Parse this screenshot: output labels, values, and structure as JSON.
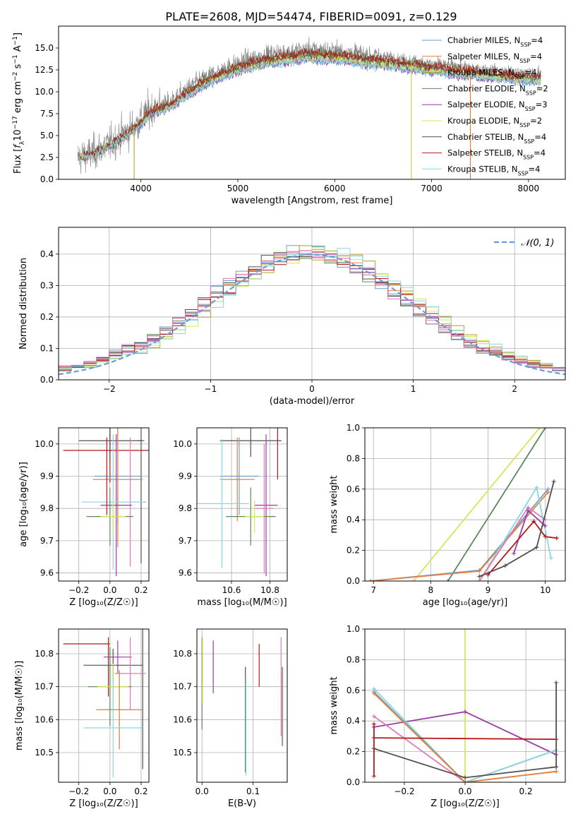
{
  "figure": {
    "title": "PLATE=2608, MJD=54474, FIBERID=0091, z=0.129"
  },
  "models": [
    {
      "name": "Chabrier MILES",
      "nssp": "4",
      "color": "#6a9fcf"
    },
    {
      "name": "Salpeter MILES",
      "nssp": "4",
      "color": "#e8803a"
    },
    {
      "name": "Kroupa MILES",
      "nssp": "4",
      "color": "#b8a020"
    },
    {
      "name": "Chabrier ELODIE",
      "nssp": "2",
      "color": "#5a8a5a"
    },
    {
      "name": "Salpeter ELODIE",
      "nssp": "3",
      "color": "#9a3aa8"
    },
    {
      "name": "Kroupa ELODIE",
      "nssp": "2",
      "color": "#d2e85a"
    },
    {
      "name": "Chabrier STELIB",
      "nssp": "4",
      "color": "#505050"
    },
    {
      "name": "Salpeter STELIB",
      "nssp": "4",
      "color": "#b81818"
    },
    {
      "name": "Kroupa STELIB",
      "nssp": "4",
      "color": "#88d8e0"
    }
  ],
  "extra_colors": {
    "pink": "#e07ab8",
    "data": "#808080",
    "normal": "#6a9ae0"
  },
  "chart_data": [
    {
      "id": "spectrum",
      "type": "line",
      "xlabel": "wavelength [Angstrom, rest frame]",
      "xlim": [
        3150,
        8380
      ],
      "ylim": [
        0,
        17.5
      ],
      "xticks": [
        4000,
        5000,
        6000,
        7000,
        8000
      ],
      "yticks": [
        0.0,
        2.5,
        5.0,
        7.5,
        10.0,
        12.5,
        15.0
      ],
      "continuum": [
        [
          3350,
          2.5
        ],
        [
          3500,
          3.0
        ],
        [
          3700,
          4.2
        ],
        [
          3900,
          5.8
        ],
        [
          4000,
          6.8
        ],
        [
          4100,
          8.0
        ],
        [
          4200,
          8.4
        ],
        [
          4300,
          8.8
        ],
        [
          4500,
          10.5
        ],
        [
          4700,
          11.8
        ],
        [
          4900,
          12.8
        ],
        [
          5100,
          13.6
        ],
        [
          5300,
          14.2
        ],
        [
          5500,
          14.5
        ],
        [
          5700,
          14.8
        ],
        [
          5900,
          14.7
        ],
        [
          6100,
          14.6
        ],
        [
          6300,
          14.2
        ],
        [
          6500,
          14.0
        ],
        [
          6700,
          13.7
        ],
        [
          6900,
          13.4
        ],
        [
          7100,
          13.1
        ],
        [
          7300,
          12.9
        ],
        [
          7500,
          12.6
        ],
        [
          7700,
          12.4
        ],
        [
          7900,
          12.2
        ],
        [
          8100,
          12.0
        ]
      ]
    },
    {
      "id": "residuals",
      "type": "step-histogram",
      "xlabel": "(data-model)/error",
      "ylabel": "Normed distribution",
      "xlim": [
        -2.5,
        2.5
      ],
      "ylim": [
        0,
        0.485
      ],
      "xticks": [
        -2,
        -1,
        0,
        1,
        2
      ],
      "yticks": [
        0.0,
        0.1,
        0.2,
        0.3,
        0.4
      ],
      "legend": "𝒩(0, 1)",
      "bins": 40,
      "bin_range": [
        -2.5,
        2.5
      ]
    },
    {
      "id": "age-vs-Z",
      "type": "errorbar",
      "xlabel": "Z [log₁₀(Z/Z☉)]",
      "ylabel": "age  [log₁₀(age/yr)]",
      "xlim": [
        -0.33,
        0.25
      ],
      "ylim": [
        9.575,
        10.05
      ],
      "xticks": [
        -0.2,
        0.0,
        0.2
      ],
      "yticks": [
        9.6,
        9.7,
        9.8,
        9.9,
        10.0
      ],
      "points": [
        {
          "x": 0.0,
          "y": 9.98,
          "xerr": 0.3,
          "yerr": 0.1,
          "color": "#b81818"
        },
        {
          "x": 0.0,
          "y": 10.01,
          "xerr": 0.2,
          "yerr": 0.06,
          "color": "#505050"
        },
        {
          "x": 0.2,
          "y": 10.01,
          "xerr": 0.02,
          "yerr": 0.38,
          "color": "#505050"
        },
        {
          "x": 0.05,
          "y": 9.9,
          "xerr": 0.15,
          "yerr": 0.15,
          "color": "#6a9fcf"
        },
        {
          "x": 0.05,
          "y": 9.89,
          "xerr": 0.16,
          "yerr": 0.21,
          "color": "#e8803a"
        },
        {
          "x": 0.13,
          "y": 9.82,
          "xerr": 0.1,
          "yerr": 0.2,
          "color": "#e07ab8"
        },
        {
          "x": 0.04,
          "y": 9.81,
          "xerr": 0.1,
          "yerr": 0.22,
          "color": "#9a3aa8"
        },
        {
          "x": 0.02,
          "y": 9.82,
          "xerr": 0.2,
          "yerr": 0.21,
          "color": "#88d8e0"
        },
        {
          "x": 0.0,
          "y": 9.775,
          "xerr": 0.15,
          "yerr": 0.09,
          "color": "#5a8a5a"
        },
        {
          "x": 0.02,
          "y": 9.775,
          "xerr": 0.08,
          "yerr": 0.05,
          "color": "#d2e85a"
        },
        {
          "x": -0.02,
          "y": 9.9,
          "xerr": 0.0,
          "yerr": 0.12,
          "color": "#b81818"
        }
      ]
    },
    {
      "id": "age-vs-mass",
      "type": "errorbar",
      "xlabel": "mass [log₁₀(M/M☉)]",
      "ylabel": "",
      "xlim": [
        10.42,
        10.89
      ],
      "ylim": [
        9.575,
        10.05
      ],
      "xticks": [
        10.6,
        10.8
      ],
      "yticks": [
        9.6,
        9.7,
        9.8,
        9.9,
        10.0
      ],
      "points": [
        {
          "x": 10.7,
          "y": 10.01,
          "xerr": 0.16,
          "yerr": 0.05,
          "color": "#505050"
        },
        {
          "x": 10.84,
          "y": 9.98,
          "xerr": 0.0,
          "yerr": 0.09,
          "color": "#b81818"
        },
        {
          "x": 10.64,
          "y": 9.9,
          "xerr": 0.1,
          "yerr": 0.12,
          "color": "#6a9fcf"
        },
        {
          "x": 10.63,
          "y": 9.89,
          "xerr": 0.09,
          "yerr": 0.13,
          "color": "#e8803a"
        },
        {
          "x": 10.55,
          "y": 9.815,
          "xerr": 0.14,
          "yerr": 0.2,
          "color": "#88d8e0"
        },
        {
          "x": 10.78,
          "y": 9.81,
          "xerr": 0.06,
          "yerr": 0.22,
          "color": "#9a3aa8"
        },
        {
          "x": 10.77,
          "y": 9.8,
          "xerr": 0.05,
          "yerr": 0.2,
          "color": "#e07ab8"
        },
        {
          "x": 10.7,
          "y": 9.775,
          "xerr": 0.13,
          "yerr": 0.09,
          "color": "#5a8a5a"
        },
        {
          "x": 10.72,
          "y": 9.775,
          "xerr": 0.05,
          "yerr": 0.05,
          "color": "#d2e85a"
        }
      ]
    },
    {
      "id": "weight-vs-age",
      "type": "line",
      "xlabel": "age  [log₁₀(age/yr)]",
      "ylabel": "mass weight",
      "xlim": [
        6.85,
        10.35
      ],
      "ylim": [
        0,
        1.0
      ],
      "xticks": [
        7,
        8,
        9,
        10
      ],
      "yticks": [
        0.0,
        0.2,
        0.4,
        0.6,
        0.8,
        1.0
      ],
      "series": [
        {
          "color": "#d2e85a",
          "points": [
            [
              7.7,
              0.0
            ],
            [
              9.9,
              1.0
            ]
          ]
        },
        {
          "color": "#5a8a5a",
          "points": [
            [
              8.3,
              0.0
            ],
            [
              10.0,
              1.0
            ]
          ]
        },
        {
          "color": "#6a9fcf",
          "points": [
            [
              6.95,
              0.0
            ],
            [
              8.85,
              0.07
            ],
            [
              10.05,
              0.6
            ]
          ]
        },
        {
          "color": "#e8803a",
          "points": [
            [
              6.95,
              0.0
            ],
            [
              8.85,
              0.065
            ],
            [
              10.05,
              0.58
            ]
          ]
        },
        {
          "color": "#88d8e0",
          "points": [
            [
              8.85,
              0.0
            ],
            [
              9.85,
              0.61
            ],
            [
              10.1,
              0.15
            ]
          ]
        },
        {
          "color": "#e07ab8",
          "points": [
            [
              8.85,
              0.0
            ],
            [
              9.7,
              0.48
            ],
            [
              10.0,
              0.4
            ]
          ]
        },
        {
          "color": "#9a3aa8",
          "points": [
            [
              9.45,
              0.18
            ],
            [
              9.7,
              0.46
            ],
            [
              10.0,
              0.36
            ]
          ]
        },
        {
          "color": "#b81818",
          "points": [
            [
              9.0,
              0.04
            ],
            [
              9.8,
              0.39
            ],
            [
              10.0,
              0.29
            ],
            [
              10.2,
              0.28
            ]
          ]
        },
        {
          "color": "#505050",
          "points": [
            [
              8.85,
              0.03
            ],
            [
              9.3,
              0.1
            ],
            [
              9.85,
              0.22
            ],
            [
              10.15,
              0.65
            ]
          ]
        }
      ]
    },
    {
      "id": "mass-vs-Z",
      "type": "errorbar",
      "xlabel": "Z [log₁₀(Z/Z☉)]",
      "ylabel": "mass [log₁₀(M/M☉)]",
      "xlim": [
        -0.33,
        0.25
      ],
      "ylim": [
        10.41,
        10.875
      ],
      "xticks": [
        -0.2,
        0.0,
        0.2
      ],
      "yticks": [
        10.5,
        10.6,
        10.7,
        10.8
      ],
      "points": [
        {
          "x": -0.15,
          "y": 10.83,
          "xerr": 0.15,
          "yerr": 0.0,
          "color": "#b81818"
        },
        {
          "x": -0.01,
          "y": 10.76,
          "xerr": 0.0,
          "yerr": 0.09,
          "color": "#b81818"
        },
        {
          "x": 0.05,
          "y": 10.79,
          "xerr": 0.09,
          "yerr": 0.05,
          "color": "#9a3aa8"
        },
        {
          "x": 0.02,
          "y": 10.765,
          "xerr": 0.19,
          "yerr": 0.05,
          "color": "#505050"
        },
        {
          "x": 0.21,
          "y": 10.77,
          "xerr": 0.0,
          "yerr": 0.32,
          "color": "#505050"
        },
        {
          "x": 0.13,
          "y": 10.74,
          "xerr": 0.1,
          "yerr": 0.11,
          "color": "#e07ab8"
        },
        {
          "x": 0.0,
          "y": 10.7,
          "xerr": 0.14,
          "yerr": 0.12,
          "color": "#5a8a5a"
        },
        {
          "x": 0.02,
          "y": 10.7,
          "xerr": 0.1,
          "yerr": 0.07,
          "color": "#d2e85a"
        },
        {
          "x": 0.06,
          "y": 10.63,
          "xerr": 0.14,
          "yerr": 0.12,
          "color": "#6a9fcf"
        },
        {
          "x": 0.06,
          "y": 10.63,
          "xerr": 0.15,
          "yerr": 0.12,
          "color": "#e8803a"
        },
        {
          "x": 0.02,
          "y": 10.575,
          "xerr": 0.19,
          "yerr": 0.15,
          "color": "#88d8e0"
        }
      ]
    },
    {
      "id": "mass-vs-ebv",
      "type": "errorbar",
      "xlabel": "E(B-V)",
      "ylabel": "",
      "xlim": [
        -0.01,
        0.167
      ],
      "ylim": [
        10.41,
        10.875
      ],
      "xticks": [
        0.0,
        0.1
      ],
      "yticks": [
        10.5,
        10.6,
        10.7,
        10.8
      ],
      "points": [
        {
          "x": 0.0,
          "y": 10.71,
          "xerr": 0.0,
          "yerr": 0.14,
          "color": "#5a8a5a"
        },
        {
          "x": 0.001,
          "y": 10.75,
          "xerr": 0.0,
          "yerr": 0.1,
          "color": "#d2e85a"
        },
        {
          "x": 0.022,
          "y": 10.76,
          "xerr": 0.0,
          "yerr": 0.08,
          "color": "#9a3aa8"
        },
        {
          "x": 0.085,
          "y": 10.6,
          "xerr": 0.0,
          "yerr": 0.16,
          "color": "#505050"
        },
        {
          "x": 0.086,
          "y": 10.58,
          "xerr": 0.0,
          "yerr": 0.15,
          "color": "#88d8e0"
        },
        {
          "x": 0.112,
          "y": 10.765,
          "xerr": 0.0,
          "yerr": 0.065,
          "color": "#b81818"
        },
        {
          "x": 0.155,
          "y": 10.7,
          "xerr": 0.0,
          "yerr": 0.15,
          "color": "#e07ab8"
        },
        {
          "x": 0.157,
          "y": 10.64,
          "xerr": 0.0,
          "yerr": 0.12,
          "color": "#e8803a"
        },
        {
          "x": 0.158,
          "y": 10.64,
          "xerr": 0.0,
          "yerr": 0.12,
          "color": "#6a9fcf"
        }
      ]
    },
    {
      "id": "weight-vs-Z",
      "type": "line",
      "xlabel": "Z [log₁₀(Z/Z☉)]",
      "ylabel": "mass weight",
      "xlim": [
        -0.33,
        0.33
      ],
      "ylim": [
        0,
        1.0
      ],
      "xticks": [
        -0.2,
        0.0,
        0.2
      ],
      "yticks": [
        0.0,
        0.2,
        0.4,
        0.6,
        0.8,
        1.0
      ],
      "series": [
        {
          "color": "#d2e85a",
          "points": [
            [
              0.0,
              0.0
            ],
            [
              0.0,
              1.0
            ]
          ]
        },
        {
          "color": "#9a3aa8",
          "points": [
            [
              -0.3,
              0.36
            ],
            [
              0.0,
              0.46
            ],
            [
              0.3,
              0.18
            ]
          ]
        },
        {
          "color": "#e07ab8",
          "points": [
            [
              -0.3,
              0.43
            ],
            [
              0.0,
              0.0
            ],
            [
              0.3,
              0.21
            ]
          ]
        },
        {
          "color": "#88d8e0",
          "points": [
            [
              -0.3,
              0.61
            ],
            [
              0.0,
              0.0
            ],
            [
              0.3,
              0.21
            ]
          ]
        },
        {
          "color": "#6a9fcf",
          "points": [
            [
              -0.3,
              0.59
            ],
            [
              0.0,
              0.0
            ],
            [
              0.3,
              0.07
            ]
          ]
        },
        {
          "color": "#e8803a",
          "points": [
            [
              -0.3,
              0.58
            ],
            [
              0.0,
              0.0
            ],
            [
              0.3,
              0.07
            ]
          ]
        },
        {
          "color": "#505050",
          "points": [
            [
              -0.3,
              0.22
            ],
            [
              0.0,
              0.03
            ],
            [
              0.3,
              0.1
            ]
          ]
        },
        {
          "color": "#b81818",
          "points": [
            [
              -0.3,
              0.29
            ],
            [
              0.3,
              0.28
            ]
          ]
        },
        {
          "color": "#b81818",
          "points": [
            [
              -0.3,
              0.04
            ],
            [
              -0.3,
              0.38
            ]
          ]
        },
        {
          "color": "#505050",
          "points": [
            [
              0.3,
              0.1
            ],
            [
              0.3,
              0.65
            ]
          ]
        }
      ]
    }
  ]
}
